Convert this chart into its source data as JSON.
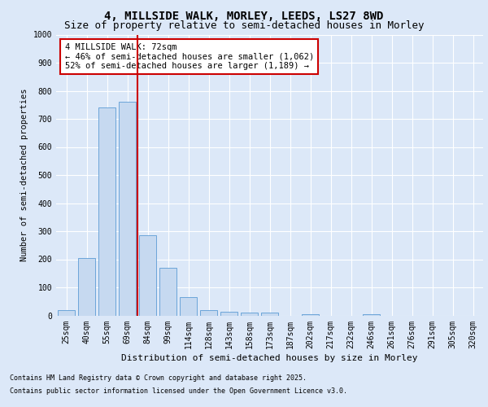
{
  "title1": "4, MILLSIDE WALK, MORLEY, LEEDS, LS27 8WD",
  "title2": "Size of property relative to semi-detached houses in Morley",
  "xlabel": "Distribution of semi-detached houses by size in Morley",
  "ylabel": "Number of semi-detached properties",
  "categories": [
    "25sqm",
    "40sqm",
    "55sqm",
    "69sqm",
    "84sqm",
    "99sqm",
    "114sqm",
    "128sqm",
    "143sqm",
    "158sqm",
    "173sqm",
    "187sqm",
    "202sqm",
    "217sqm",
    "232sqm",
    "246sqm",
    "261sqm",
    "276sqm",
    "291sqm",
    "305sqm",
    "320sqm"
  ],
  "values": [
    20,
    205,
    740,
    760,
    285,
    170,
    65,
    18,
    14,
    11,
    11,
    0,
    5,
    0,
    0,
    5,
    0,
    0,
    0,
    0,
    0
  ],
  "bar_color": "#c6d9f0",
  "bar_edge_color": "#5b9bd5",
  "vline_x": 3.5,
  "vline_color": "#cc0000",
  "annotation_text": "4 MILLSIDE WALK: 72sqm\n← 46% of semi-detached houses are smaller (1,062)\n52% of semi-detached houses are larger (1,189) →",
  "annotation_box_color": "#ffffff",
  "annotation_box_edge": "#cc0000",
  "ylim": [
    0,
    1000
  ],
  "yticks": [
    0,
    100,
    200,
    300,
    400,
    500,
    600,
    700,
    800,
    900,
    1000
  ],
  "footnote1": "Contains HM Land Registry data © Crown copyright and database right 2025.",
  "footnote2": "Contains public sector information licensed under the Open Government Licence v3.0.",
  "bg_color": "#dce8f8",
  "plot_bg_color": "#dce8f8",
  "grid_color": "#ffffff",
  "title1_fontsize": 10,
  "title2_fontsize": 9,
  "annot_fontsize": 7.5,
  "axis_fontsize": 7,
  "ylabel_fontsize": 7.5,
  "xlabel_fontsize": 8
}
